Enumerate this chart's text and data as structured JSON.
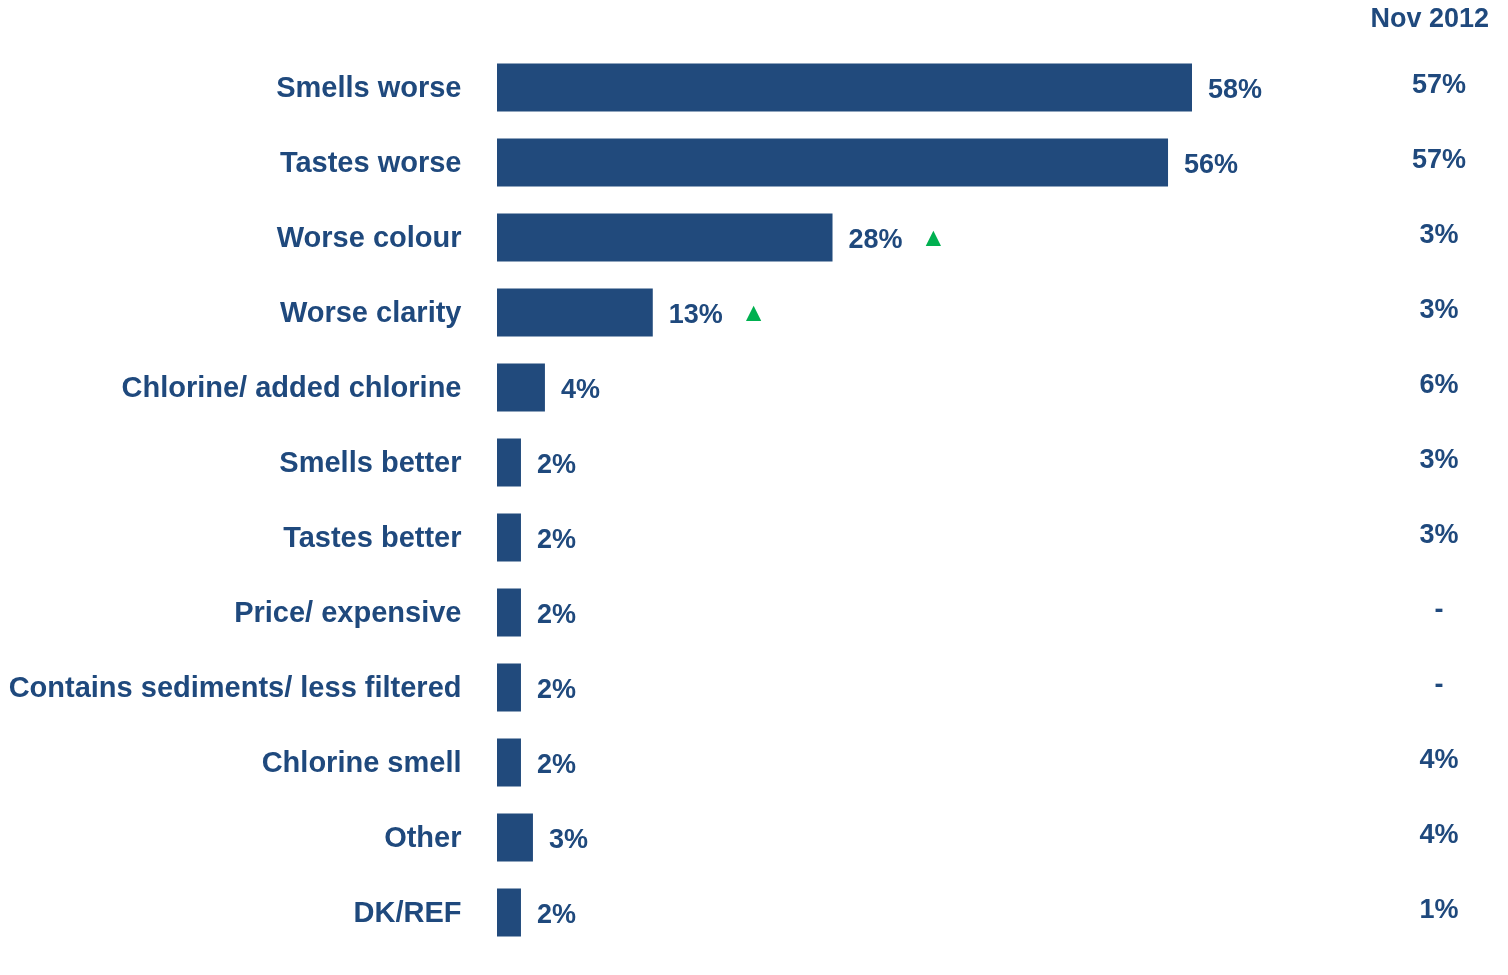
{
  "chart_data": [
    {
      "type": "bar",
      "orientation": "horizontal",
      "categories": [
        "Smells worse",
        "Tastes worse",
        "Worse colour",
        "Worse clarity",
        "Chlorine/ added chlorine",
        "Smells better",
        "Tastes better",
        "Price/ expensive",
        "Contains sediments/ less filtered",
        "Chlorine smell",
        "Other",
        "DK/REF"
      ],
      "values": [
        58,
        56,
        28,
        13,
        4,
        2,
        2,
        2,
        2,
        2,
        3,
        2
      ],
      "value_labels": [
        "58%",
        "56%",
        "28% ▲",
        "13% ▲",
        "4%",
        "2%",
        "2%",
        "2%",
        "2%",
        "2%",
        "3%",
        "2%"
      ],
      "color": "#214a7c"
    },
    {
      "type": "other",
      "title": "Nov 2012",
      "annotations": [
        "57%",
        "57%",
        "3%",
        "3%",
        "6%",
        "3%",
        "3%",
        "-",
        "-",
        "4%",
        "4%",
        "1%"
      ]
    }
  ]
}
